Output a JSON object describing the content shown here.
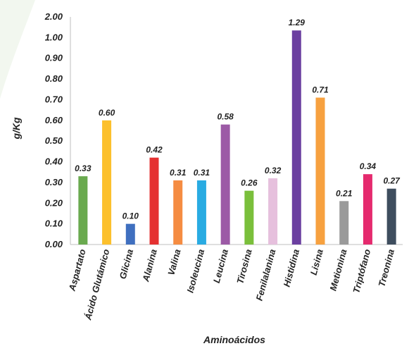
{
  "chart_data": {
    "type": "bar",
    "ylabel": "g/Kg",
    "xlabel": "Aminoácidos",
    "yticks": [
      "0.00",
      "0.10",
      "0.20",
      "0.30",
      "0.40",
      "0.50",
      "0.60",
      "0.70",
      "0.80",
      "0.90",
      "1.00",
      "2.00"
    ],
    "categories": [
      "Aspartato",
      "Ácido Glutámico",
      "Glicina",
      "Alanina",
      "Valina",
      "Isoleucina",
      "Leucina",
      "Tirosina",
      "Fenilalanina",
      "Histidina",
      "Lisina",
      "Metionina",
      "Triptófano",
      "Treonina"
    ],
    "values": [
      0.33,
      0.6,
      0.1,
      0.42,
      0.31,
      0.31,
      0.58,
      0.26,
      0.32,
      1.29,
      0.71,
      0.21,
      0.34,
      0.27
    ],
    "value_labels": [
      "0.33",
      "0.60",
      "0.10",
      "0.42",
      "0.31",
      "0.31",
      "0.58",
      "0.26",
      "0.32",
      "1.29",
      "0.71",
      "0.21",
      "0.34",
      "0.27"
    ],
    "colors": [
      "#6aaa4f",
      "#fcc02c",
      "#3f6fbf",
      "#e53131",
      "#f58c42",
      "#29abe2",
      "#9c5aa6",
      "#7abf3b",
      "#e6c0dd",
      "#6b3fa0",
      "#f7a13f",
      "#9a9a9a",
      "#e52a6e",
      "#3e4d5e"
    ],
    "grid": false,
    "legend": "none"
  },
  "background": {
    "shape_color": "#f2f7ef"
  }
}
